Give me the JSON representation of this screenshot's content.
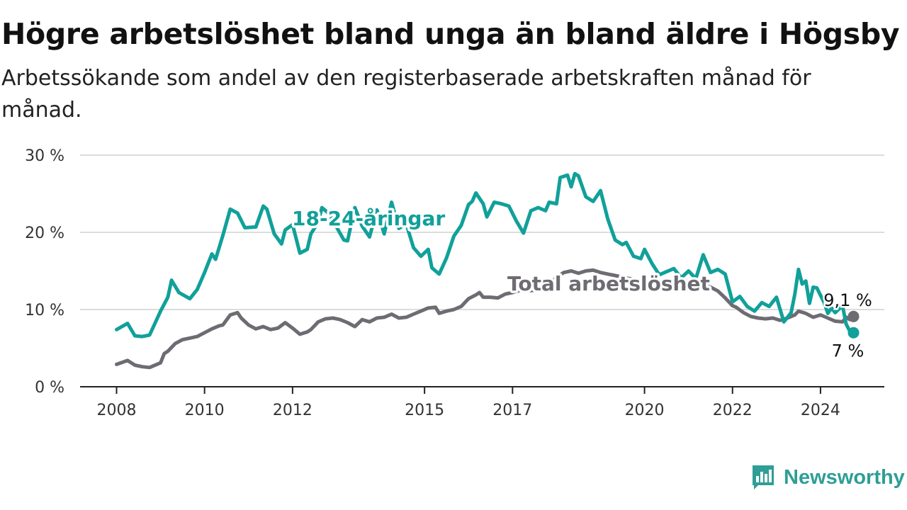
{
  "header": {
    "title": "Högre arbetslöshet bland unga än bland äldre i Högsby",
    "subtitle": "Arbetssökande som andel av den registerbaserade arbetskraften månad för månad."
  },
  "brand": {
    "name": "Newsworthy",
    "icon": "newsworthy-logo-icon",
    "color": "#2e9e96"
  },
  "chart_data": {
    "type": "line",
    "title": "Högre arbetslöshet bland unga än bland äldre i Högsby",
    "subtitle": "Arbetssökande som andel av den registerbaserade arbetskraften månad för månad.",
    "xlabel": "",
    "ylabel": "",
    "x_ticks": [
      "2008",
      "2010",
      "2012",
      "2015",
      "2017",
      "2020",
      "2022",
      "2024"
    ],
    "y_ticks": [
      "0 %",
      "10 %",
      "20 %",
      "30 %"
    ],
    "ylim": [
      0,
      30
    ],
    "xlim": [
      "2008-01",
      "2024-10"
    ],
    "grid": "horizontal",
    "legend": "direct labels on lines",
    "series": [
      {
        "name": "18-24-åringar",
        "color": "#11a09a",
        "end_label": "7 %",
        "points": [
          [
            "2008-01",
            7.4
          ],
          [
            "2008-04",
            8.2
          ],
          [
            "2008-06",
            6.6
          ],
          [
            "2008-08",
            6.5
          ],
          [
            "2008-10",
            6.7
          ],
          [
            "2009-01",
            9.8
          ],
          [
            "2009-03",
            11.6
          ],
          [
            "2009-04",
            13.8
          ],
          [
            "2009-06",
            12.2
          ],
          [
            "2009-09",
            11.4
          ],
          [
            "2009-11",
            12.6
          ],
          [
            "2010-01",
            14.8
          ],
          [
            "2010-03",
            17.2
          ],
          [
            "2010-04",
            16.5
          ],
          [
            "2010-06",
            19.6
          ],
          [
            "2010-08",
            23.0
          ],
          [
            "2010-10",
            22.5
          ],
          [
            "2010-12",
            20.6
          ],
          [
            "2011-03",
            20.7
          ],
          [
            "2011-05",
            23.4
          ],
          [
            "2011-06",
            23.0
          ],
          [
            "2011-08",
            19.8
          ],
          [
            "2011-10",
            18.5
          ],
          [
            "2011-11",
            20.3
          ],
          [
            "2012-01",
            21.0
          ],
          [
            "2012-03",
            17.3
          ],
          [
            "2012-05",
            17.8
          ],
          [
            "2012-06",
            19.8
          ],
          [
            "2012-08",
            21.3
          ],
          [
            "2012-09",
            23.2
          ],
          [
            "2012-11",
            22.4
          ],
          [
            "2013-01",
            20.7
          ],
          [
            "2013-03",
            19.0
          ],
          [
            "2013-04",
            18.9
          ],
          [
            "2013-06",
            23.2
          ],
          [
            "2013-08",
            20.8
          ],
          [
            "2013-10",
            19.4
          ],
          [
            "2013-12",
            22.9
          ],
          [
            "2014-02",
            19.8
          ],
          [
            "2014-04",
            23.9
          ],
          [
            "2014-06",
            20.5
          ],
          [
            "2014-08",
            21.1
          ],
          [
            "2014-10",
            18.0
          ],
          [
            "2014-12",
            16.9
          ],
          [
            "2015-02",
            17.8
          ],
          [
            "2015-03",
            15.4
          ],
          [
            "2015-05",
            14.6
          ],
          [
            "2015-07",
            16.7
          ],
          [
            "2015-09",
            19.5
          ],
          [
            "2015-11",
            20.9
          ],
          [
            "2016-01",
            23.6
          ],
          [
            "2016-02",
            24.0
          ],
          [
            "2016-03",
            25.1
          ],
          [
            "2016-05",
            23.7
          ],
          [
            "2016-06",
            22.0
          ],
          [
            "2016-08",
            23.9
          ],
          [
            "2016-10",
            23.7
          ],
          [
            "2016-12",
            23.4
          ],
          [
            "2017-02",
            21.5
          ],
          [
            "2017-04",
            19.9
          ],
          [
            "2017-06",
            22.8
          ],
          [
            "2017-08",
            23.2
          ],
          [
            "2017-10",
            22.8
          ],
          [
            "2017-11",
            23.9
          ],
          [
            "2018-01",
            23.7
          ],
          [
            "2018-02",
            27.1
          ],
          [
            "2018-04",
            27.4
          ],
          [
            "2018-05",
            25.9
          ],
          [
            "2018-06",
            27.6
          ],
          [
            "2018-07",
            27.3
          ],
          [
            "2018-09",
            24.6
          ],
          [
            "2018-11",
            24.0
          ],
          [
            "2019-01",
            25.4
          ],
          [
            "2019-03",
            21.7
          ],
          [
            "2019-05",
            19.0
          ],
          [
            "2019-07",
            18.4
          ],
          [
            "2019-08",
            18.7
          ],
          [
            "2019-10",
            16.9
          ],
          [
            "2019-12",
            16.6
          ],
          [
            "2020-01",
            17.8
          ],
          [
            "2020-03",
            16.0
          ],
          [
            "2020-05",
            14.5
          ],
          [
            "2020-07",
            14.9
          ],
          [
            "2020-09",
            15.3
          ],
          [
            "2020-11",
            14.1
          ],
          [
            "2021-01",
            15.0
          ],
          [
            "2021-03",
            14.0
          ],
          [
            "2021-05",
            17.1
          ],
          [
            "2021-07",
            14.8
          ],
          [
            "2021-09",
            15.2
          ],
          [
            "2021-11",
            14.6
          ],
          [
            "2022-01",
            11.0
          ],
          [
            "2022-03",
            11.7
          ],
          [
            "2022-05",
            10.4
          ],
          [
            "2022-07",
            9.8
          ],
          [
            "2022-09",
            10.9
          ],
          [
            "2022-11",
            10.4
          ],
          [
            "2023-01",
            11.6
          ],
          [
            "2023-03",
            8.4
          ],
          [
            "2023-05",
            9.6
          ],
          [
            "2023-06",
            12.0
          ],
          [
            "2023-07",
            15.2
          ],
          [
            "2023-08",
            13.3
          ],
          [
            "2023-09",
            13.7
          ],
          [
            "2023-10",
            10.8
          ],
          [
            "2023-11",
            12.9
          ],
          [
            "2023-12",
            12.8
          ],
          [
            "2024-02",
            10.9
          ],
          [
            "2024-03",
            9.5
          ],
          [
            "2024-04",
            10.2
          ],
          [
            "2024-05",
            9.6
          ],
          [
            "2024-07",
            10.5
          ],
          [
            "2024-08",
            8.1
          ],
          [
            "2024-09",
            7.2
          ],
          [
            "2024-10",
            7.0
          ]
        ]
      },
      {
        "name": "Total arbetslöshet",
        "color": "#6e6b72",
        "end_label": "9,1 %",
        "points": [
          [
            "2008-01",
            2.9
          ],
          [
            "2008-04",
            3.4
          ],
          [
            "2008-06",
            2.8
          ],
          [
            "2008-08",
            2.6
          ],
          [
            "2008-10",
            2.5
          ],
          [
            "2009-01",
            3.1
          ],
          [
            "2009-02",
            4.3
          ],
          [
            "2009-03",
            4.6
          ],
          [
            "2009-05",
            5.6
          ],
          [
            "2009-07",
            6.1
          ],
          [
            "2009-09",
            6.3
          ],
          [
            "2009-11",
            6.5
          ],
          [
            "2010-01",
            7.0
          ],
          [
            "2010-03",
            7.5
          ],
          [
            "2010-05",
            7.9
          ],
          [
            "2010-06",
            8.0
          ],
          [
            "2010-08",
            9.3
          ],
          [
            "2010-10",
            9.6
          ],
          [
            "2010-11",
            8.9
          ],
          [
            "2011-01",
            8.0
          ],
          [
            "2011-03",
            7.5
          ],
          [
            "2011-05",
            7.8
          ],
          [
            "2011-07",
            7.4
          ],
          [
            "2011-09",
            7.6
          ],
          [
            "2011-11",
            8.3
          ],
          [
            "2012-01",
            7.6
          ],
          [
            "2012-03",
            6.8
          ],
          [
            "2012-05",
            7.1
          ],
          [
            "2012-06",
            7.4
          ],
          [
            "2012-08",
            8.4
          ],
          [
            "2012-10",
            8.8
          ],
          [
            "2012-12",
            8.9
          ],
          [
            "2013-02",
            8.7
          ],
          [
            "2013-04",
            8.3
          ],
          [
            "2013-06",
            7.8
          ],
          [
            "2013-08",
            8.7
          ],
          [
            "2013-10",
            8.4
          ],
          [
            "2013-12",
            8.9
          ],
          [
            "2014-02",
            9.0
          ],
          [
            "2014-04",
            9.4
          ],
          [
            "2014-06",
            8.9
          ],
          [
            "2014-08",
            9.0
          ],
          [
            "2014-10",
            9.4
          ],
          [
            "2014-12",
            9.8
          ],
          [
            "2015-02",
            10.2
          ],
          [
            "2015-04",
            10.3
          ],
          [
            "2015-05",
            9.5
          ],
          [
            "2015-07",
            9.8
          ],
          [
            "2015-09",
            10.0
          ],
          [
            "2015-11",
            10.4
          ],
          [
            "2016-01",
            11.4
          ],
          [
            "2016-03",
            11.9
          ],
          [
            "2016-04",
            12.2
          ],
          [
            "2016-05",
            11.6
          ],
          [
            "2016-07",
            11.6
          ],
          [
            "2016-09",
            11.5
          ],
          [
            "2016-11",
            12.0
          ],
          [
            "2017-01",
            12.2
          ],
          [
            "2017-03",
            12.5
          ],
          [
            "2017-05",
            12.4
          ],
          [
            "2017-07",
            12.5
          ],
          [
            "2017-09",
            12.8
          ],
          [
            "2017-11",
            13.2
          ],
          [
            "2018-01",
            14.2
          ],
          [
            "2018-03",
            14.8
          ],
          [
            "2018-05",
            15.0
          ],
          [
            "2018-07",
            14.7
          ],
          [
            "2018-09",
            15.0
          ],
          [
            "2018-11",
            15.1
          ],
          [
            "2019-01",
            14.8
          ],
          [
            "2019-03",
            14.6
          ],
          [
            "2019-05",
            14.4
          ],
          [
            "2019-07",
            14.2
          ],
          [
            "2019-09",
            14.0
          ],
          [
            "2019-11",
            13.8
          ],
          [
            "2020-01",
            13.6
          ],
          [
            "2020-03",
            13.5
          ],
          [
            "2020-05",
            13.4
          ],
          [
            "2020-07",
            13.3
          ],
          [
            "2020-09",
            13.3
          ],
          [
            "2020-11",
            13.4
          ],
          [
            "2021-01",
            13.5
          ],
          [
            "2021-03",
            13.4
          ],
          [
            "2021-05",
            13.2
          ],
          [
            "2021-07",
            12.9
          ],
          [
            "2021-09",
            12.4
          ],
          [
            "2021-11",
            11.5
          ],
          [
            "2022-01",
            10.5
          ],
          [
            "2022-02",
            10.3
          ],
          [
            "2022-04",
            9.6
          ],
          [
            "2022-06",
            9.1
          ],
          [
            "2022-08",
            8.9
          ],
          [
            "2022-10",
            8.8
          ],
          [
            "2022-12",
            8.9
          ],
          [
            "2023-02",
            8.6
          ],
          [
            "2023-04",
            8.9
          ],
          [
            "2023-06",
            9.3
          ],
          [
            "2023-07",
            9.8
          ],
          [
            "2023-09",
            9.5
          ],
          [
            "2023-11",
            9.0
          ],
          [
            "2024-01",
            9.3
          ],
          [
            "2024-03",
            8.9
          ],
          [
            "2024-05",
            8.5
          ],
          [
            "2024-07",
            8.4
          ],
          [
            "2024-08",
            9.0
          ],
          [
            "2024-09",
            8.7
          ],
          [
            "2024-10",
            9.1
          ]
        ]
      }
    ]
  }
}
